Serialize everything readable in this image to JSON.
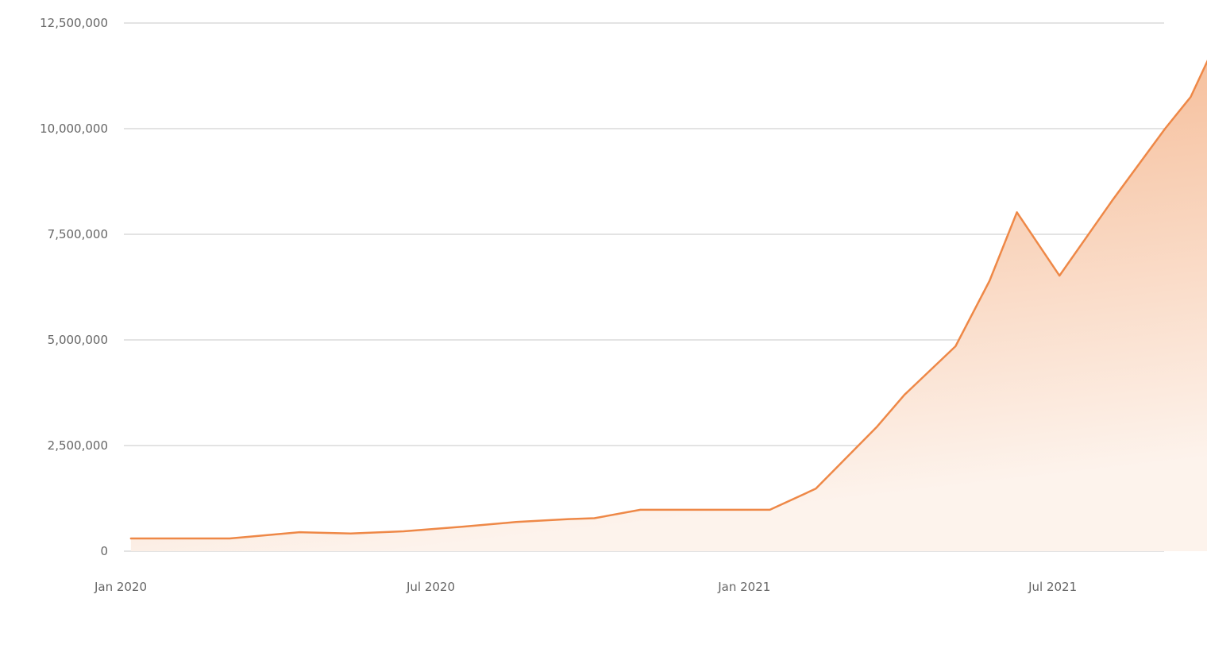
{
  "chart_data": {
    "type": "area",
    "title": "",
    "xlabel": "",
    "ylabel": "",
    "x_ticks": [
      {
        "label": "Jan 2020",
        "date": "2020-01-01"
      },
      {
        "label": "Jul 2020",
        "date": "2020-07-01"
      },
      {
        "label": "Jan 2021",
        "date": "2021-01-01"
      },
      {
        "label": "Jul 2021",
        "date": "2021-07-01"
      }
    ],
    "y_ticks": [
      {
        "label": "0",
        "value": 0
      },
      {
        "label": "2,500,000",
        "value": 2500000
      },
      {
        "label": "5,000,000",
        "value": 5000000
      },
      {
        "label": "7,500,000",
        "value": 7500000
      },
      {
        "label": "10,000,000",
        "value": 10000000
      },
      {
        "label": "12,500,000",
        "value": 12500000
      }
    ],
    "ylim": [
      0,
      12500000
    ],
    "xlim": [
      "2020-01-01",
      "2021-10-01"
    ],
    "grid": true,
    "legend": "none",
    "colors": {
      "line": "#ee8847",
      "fill_top": "#f4b186",
      "fill_bottom": "#fdf3ec",
      "grid": "#e3e3e3",
      "tick_text": "#666666"
    },
    "series": [
      {
        "points": [
          {
            "x": "2020-01-07",
            "y": 300000
          },
          {
            "x": "2020-03-05",
            "y": 300000
          },
          {
            "x": "2020-04-15",
            "y": 450000
          },
          {
            "x": "2020-05-15",
            "y": 420000
          },
          {
            "x": "2020-06-15",
            "y": 470000
          },
          {
            "x": "2020-07-20",
            "y": 580000
          },
          {
            "x": "2020-08-20",
            "y": 690000
          },
          {
            "x": "2020-09-20",
            "y": 760000
          },
          {
            "x": "2020-10-05",
            "y": 780000
          },
          {
            "x": "2020-11-01",
            "y": 980000
          },
          {
            "x": "2020-12-15",
            "y": 980000
          },
          {
            "x": "2021-01-16",
            "y": 980000
          },
          {
            "x": "2021-02-12",
            "y": 1480000
          },
          {
            "x": "2021-03-20",
            "y": 2950000
          },
          {
            "x": "2021-04-05",
            "y": 3700000
          },
          {
            "x": "2021-05-05",
            "y": 4850000
          },
          {
            "x": "2021-05-25",
            "y": 6400000
          },
          {
            "x": "2021-06-10",
            "y": 8020000
          },
          {
            "x": "2021-07-05",
            "y": 6520000
          },
          {
            "x": "2021-08-05",
            "y": 8300000
          },
          {
            "x": "2021-09-05",
            "y": 10000000
          },
          {
            "x": "2021-09-20",
            "y": 10750000
          },
          {
            "x": "2021-10-01",
            "y": 11700000
          }
        ]
      }
    ]
  }
}
